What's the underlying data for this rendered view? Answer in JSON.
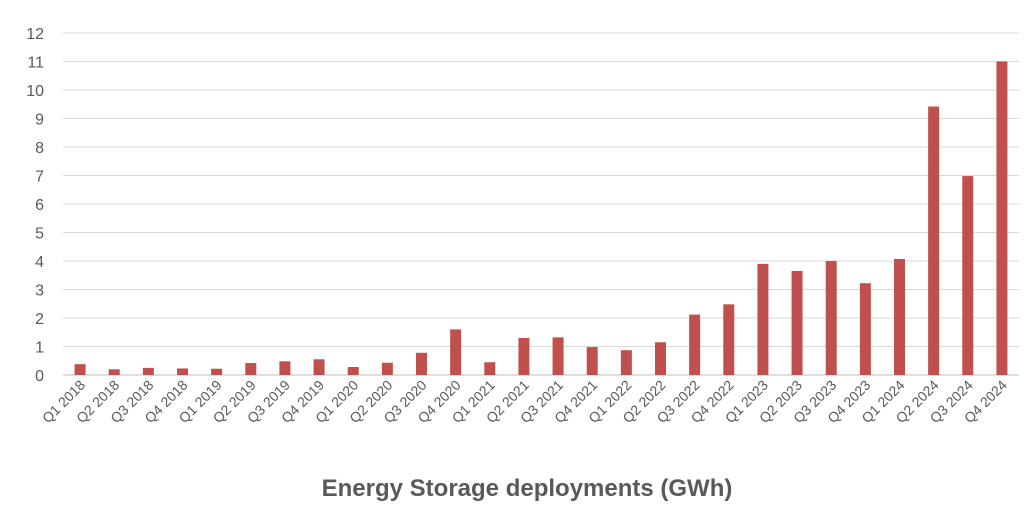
{
  "chart_data": {
    "type": "bar",
    "title": "",
    "xlabel": "Energy Storage deployments (GWh)",
    "ylabel": "",
    "ylim": [
      0,
      12
    ],
    "yticks": [
      0,
      1,
      2,
      3,
      4,
      5,
      6,
      7,
      8,
      9,
      10,
      11,
      12
    ],
    "grid": true,
    "legend": "none",
    "bar_color": "#c0504d",
    "categories": [
      "Q1 2018",
      "Q2 2018",
      "Q3 2018",
      "Q4 2018",
      "Q1 2019",
      "Q2 2019",
      "Q3 2019",
      "Q4 2019",
      "Q1 2020",
      "Q2 2020",
      "Q3 2020",
      "Q4 2020",
      "Q1 2021",
      "Q2 2021",
      "Q3 2021",
      "Q4 2021",
      "Q1 2022",
      "Q2 2022",
      "Q3 2022",
      "Q4 2022",
      "Q1 2023",
      "Q2 2023",
      "Q3 2023",
      "Q4 2023",
      "Q1 2024",
      "Q2 2024",
      "Q3 2024",
      "Q4 2024"
    ],
    "values": [
      0.38,
      0.2,
      0.25,
      0.23,
      0.22,
      0.42,
      0.48,
      0.55,
      0.28,
      0.43,
      0.78,
      1.6,
      0.45,
      1.3,
      1.32,
      0.98,
      0.87,
      1.15,
      2.12,
      2.48,
      3.9,
      3.65,
      4.0,
      3.22,
      4.07,
      9.42,
      6.98,
      11.0
    ]
  }
}
